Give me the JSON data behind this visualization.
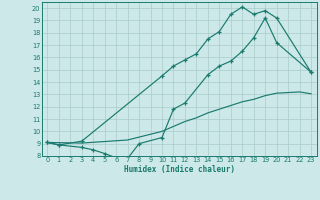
{
  "xlabel": "Humidex (Indice chaleur)",
  "bg_color": "#cce8e8",
  "line_color": "#1a7a6e",
  "grid_color": "#aacccc",
  "xlim": [
    -0.5,
    23.5
  ],
  "ylim": [
    8.0,
    20.5
  ],
  "yticks": [
    8,
    9,
    10,
    11,
    12,
    13,
    14,
    15,
    16,
    17,
    18,
    19,
    20
  ],
  "xticks": [
    0,
    1,
    2,
    3,
    4,
    5,
    6,
    7,
    8,
    9,
    10,
    11,
    12,
    13,
    14,
    15,
    16,
    17,
    18,
    19,
    20,
    21,
    22,
    23
  ],
  "line1_x": [
    0,
    1,
    3,
    10,
    11,
    12,
    13,
    14,
    15,
    16,
    17,
    18,
    19,
    20,
    23
  ],
  "line1_y": [
    9.1,
    8.9,
    9.2,
    14.5,
    15.3,
    15.8,
    16.3,
    17.5,
    18.1,
    19.5,
    20.1,
    19.5,
    19.8,
    19.2,
    14.8
  ],
  "line2_x": [
    0,
    1,
    3,
    4,
    5,
    6,
    7,
    8,
    10,
    11,
    12,
    14,
    15,
    16,
    17,
    18,
    19,
    20,
    23
  ],
  "line2_y": [
    9.1,
    8.9,
    8.7,
    8.5,
    8.2,
    7.85,
    7.8,
    9.0,
    9.5,
    11.8,
    12.3,
    14.6,
    15.3,
    15.7,
    16.5,
    17.6,
    19.2,
    17.2,
    14.8
  ],
  "line3_x": [
    0,
    3,
    7,
    10,
    11,
    12,
    13,
    14,
    15,
    16,
    17,
    18,
    19,
    20,
    21,
    22,
    23
  ],
  "line3_y": [
    9.1,
    9.05,
    9.3,
    10.0,
    10.4,
    10.8,
    11.1,
    11.5,
    11.8,
    12.1,
    12.4,
    12.6,
    12.9,
    13.1,
    13.15,
    13.2,
    13.05
  ]
}
